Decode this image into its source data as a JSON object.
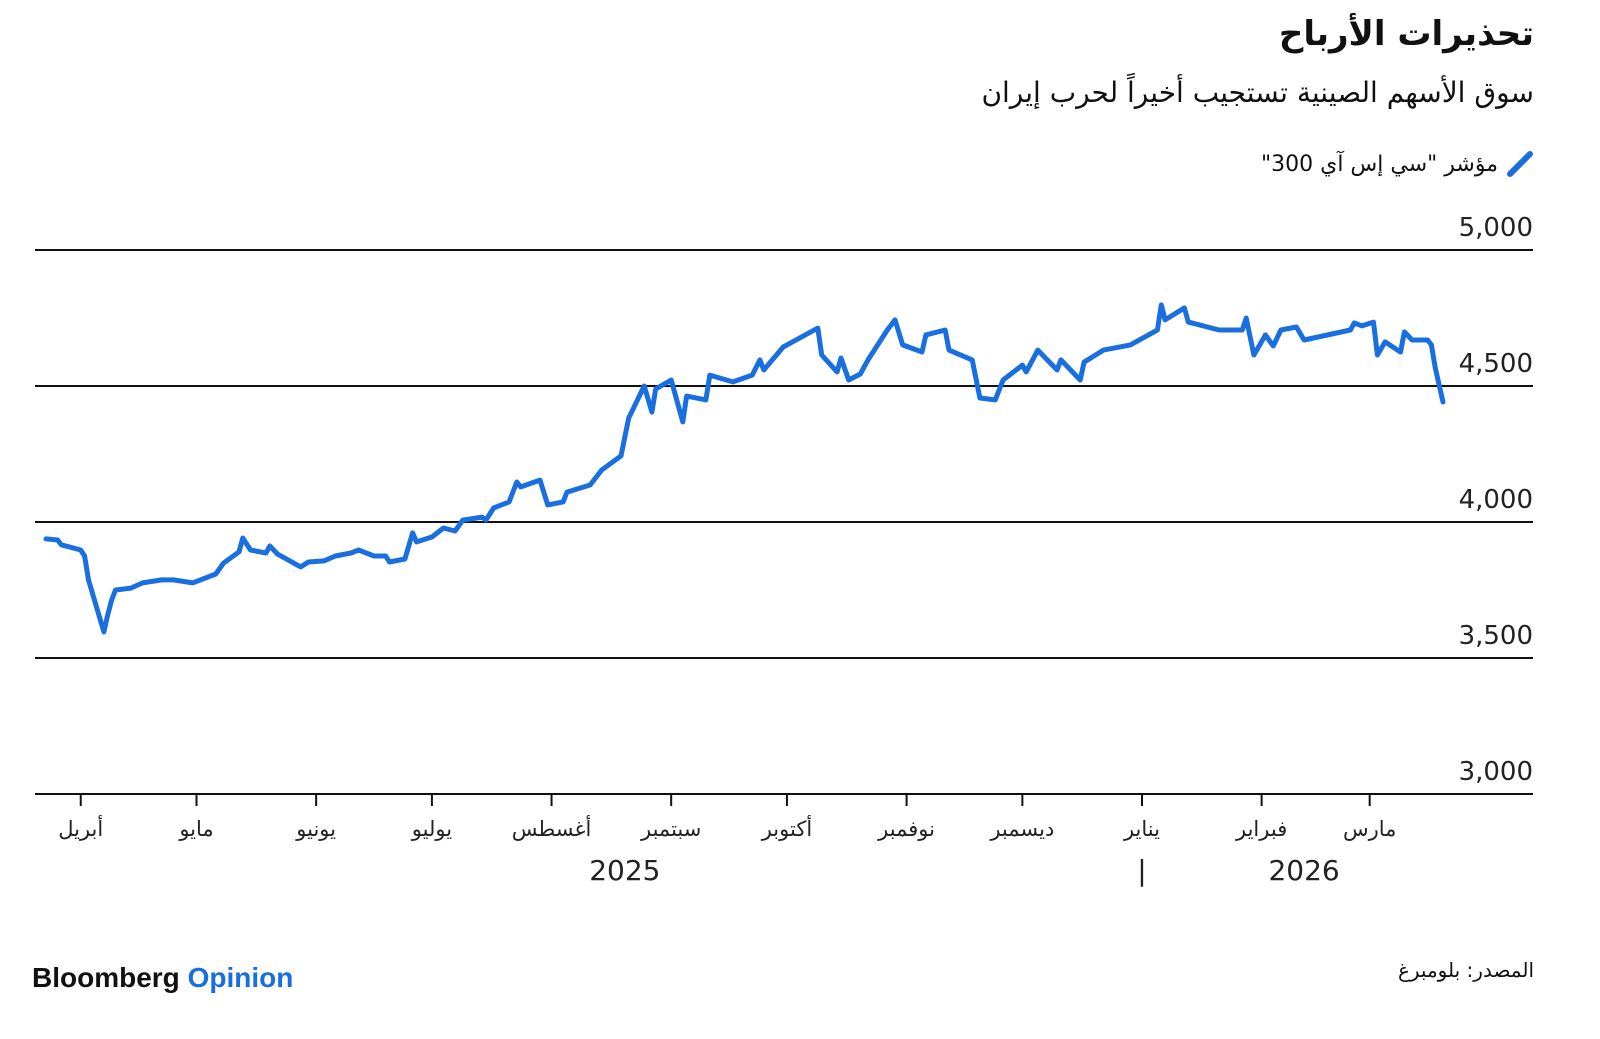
{
  "header": {
    "title": "تحذيرات الأرباح",
    "subtitle": "سوق الأسهم الصينية تستجيب أخيراً لحرب إيران"
  },
  "colors": {
    "line": "#1a6fe0",
    "grid": "#111111",
    "brand_accent": "#1a6fe0"
  },
  "chart_data": {
    "type": "line",
    "title": "تحذيرات الأرباح",
    "subtitle": "سوق الأسهم الصينية تستجيب أخيراً لحرب إيران",
    "ylim": [
      3000,
      5000
    ],
    "y_ticks": [
      5000,
      4500,
      4000,
      3500,
      3000
    ],
    "y_tick_labels": [
      "5,000",
      "4,500",
      "4,000",
      "3,500",
      "3,000"
    ],
    "xlim": [
      "2025-03-23",
      "2026-03-20"
    ],
    "x_ticks": [
      "2025-04-01",
      "2025-05-01",
      "2025-06-01",
      "2025-07-01",
      "2025-08-01",
      "2025-09-01",
      "2025-10-01",
      "2025-11-01",
      "2025-12-01",
      "2026-01-01",
      "2026-02-01",
      "2026-03-01"
    ],
    "x_tick_labels": [
      "أبريل",
      "مايو",
      "يونيو",
      "يوليو",
      "أغسطس",
      "سبتمبر",
      "أكتوبر",
      "نوفمبر",
      "ديسمبر",
      "يناير",
      "فبراير",
      "مارس"
    ],
    "year_labels": [
      {
        "label": "2025",
        "date": "2025-08-20"
      },
      {
        "label": "2026",
        "date": "2026-02-12"
      }
    ],
    "year_separator": {
      "label": "|",
      "date": "2026-01-01"
    },
    "grid": true,
    "legend_position": "top-right",
    "series": [
      {
        "name": "مؤشر \"سي إس آي 300\"",
        "x": [
          "2025-03-23",
          "2025-03-26",
          "2025-03-27",
          "2025-04-01",
          "2025-04-02",
          "2025-04-03",
          "2025-04-07",
          "2025-04-08",
          "2025-04-09",
          "2025-04-10",
          "2025-04-14",
          "2025-04-17",
          "2025-04-22",
          "2025-04-25",
          "2025-04-30",
          "2025-05-06",
          "2025-05-08",
          "2025-05-12",
          "2025-05-13",
          "2025-05-15",
          "2025-05-19",
          "2025-05-20",
          "2025-05-22",
          "2025-05-28",
          "2025-05-30",
          "2025-06-03",
          "2025-06-06",
          "2025-06-10",
          "2025-06-12",
          "2025-06-16",
          "2025-06-19",
          "2025-06-20",
          "2025-06-24",
          "2025-06-26",
          "2025-06-27",
          "2025-07-01",
          "2025-07-04",
          "2025-07-07",
          "2025-07-09",
          "2025-07-14",
          "2025-07-15",
          "2025-07-17",
          "2025-07-21",
          "2025-07-23",
          "2025-07-24",
          "2025-07-29",
          "2025-07-31",
          "2025-08-04",
          "2025-08-05",
          "2025-08-11",
          "2025-08-14",
          "2025-08-19",
          "2025-08-21",
          "2025-08-25",
          "2025-08-27",
          "2025-08-28",
          "2025-09-01",
          "2025-09-04",
          "2025-09-05",
          "2025-09-10",
          "2025-09-11",
          "2025-09-17",
          "2025-09-22",
          "2025-09-24",
          "2025-09-25",
          "2025-09-30",
          "2025-10-09",
          "2025-10-10",
          "2025-10-14",
          "2025-10-15",
          "2025-10-17",
          "2025-10-20",
          "2025-10-22",
          "2025-10-27",
          "2025-10-29",
          "2025-10-31",
          "2025-11-05",
          "2025-11-06",
          "2025-11-11",
          "2025-11-12",
          "2025-11-18",
          "2025-11-20",
          "2025-11-24",
          "2025-11-26",
          "2025-12-01",
          "2025-12-02",
          "2025-12-05",
          "2025-12-10",
          "2025-12-11",
          "2025-12-16",
          "2025-12-17",
          "2025-12-22",
          "2025-12-29",
          "2026-01-05",
          "2026-01-06",
          "2026-01-07",
          "2026-01-12",
          "2026-01-13",
          "2026-01-21",
          "2026-01-27",
          "2026-01-28",
          "2026-01-30",
          "2026-02-02",
          "2026-02-04",
          "2026-02-06",
          "2026-02-10",
          "2026-02-12",
          "2026-02-24",
          "2026-02-25",
          "2026-02-27",
          "2026-03-02",
          "2026-03-03",
          "2026-03-05",
          "2026-03-09",
          "2026-03-10",
          "2026-03-12",
          "2026-03-16",
          "2026-03-17",
          "2026-03-18",
          "2026-03-20"
        ],
        "values": [
          3938,
          3934,
          3916,
          3897,
          3875,
          3787,
          3596,
          3658,
          3713,
          3750,
          3757,
          3776,
          3787,
          3787,
          3776,
          3809,
          3849,
          3890,
          3941,
          3897,
          3886,
          3912,
          3882,
          3835,
          3853,
          3857,
          3875,
          3886,
          3897,
          3875,
          3875,
          3853,
          3864,
          3960,
          3927,
          3945,
          3978,
          3967,
          4007,
          4018,
          4007,
          4052,
          4074,
          4147,
          4129,
          4154,
          4063,
          4074,
          4110,
          4136,
          4191,
          4243,
          4382,
          4500,
          4404,
          4489,
          4522,
          4368,
          4463,
          4449,
          4540,
          4515,
          4540,
          4596,
          4559,
          4643,
          4713,
          4614,
          4552,
          4603,
          4522,
          4544,
          4596,
          4706,
          4743,
          4651,
          4625,
          4688,
          4706,
          4632,
          4596,
          4456,
          4449,
          4522,
          4577,
          4552,
          4632,
          4559,
          4596,
          4522,
          4588,
          4632,
          4651,
          4706,
          4798,
          4743,
          4787,
          4735,
          4706,
          4706,
          4750,
          4614,
          4688,
          4647,
          4706,
          4717,
          4669,
          4706,
          4732,
          4721,
          4735,
          4614,
          4662,
          4625,
          4699,
          4669,
          4669,
          4651,
          4566,
          4441
        ]
      }
    ]
  },
  "legend": {
    "label": "مؤشر \"سي إس آي 300\"",
    "icon": "diagonal-line-swatch"
  },
  "footer": {
    "brand_main": "Bloomberg",
    "brand_accent": "Opinion",
    "source": "المصدر: بلومبرغ"
  }
}
